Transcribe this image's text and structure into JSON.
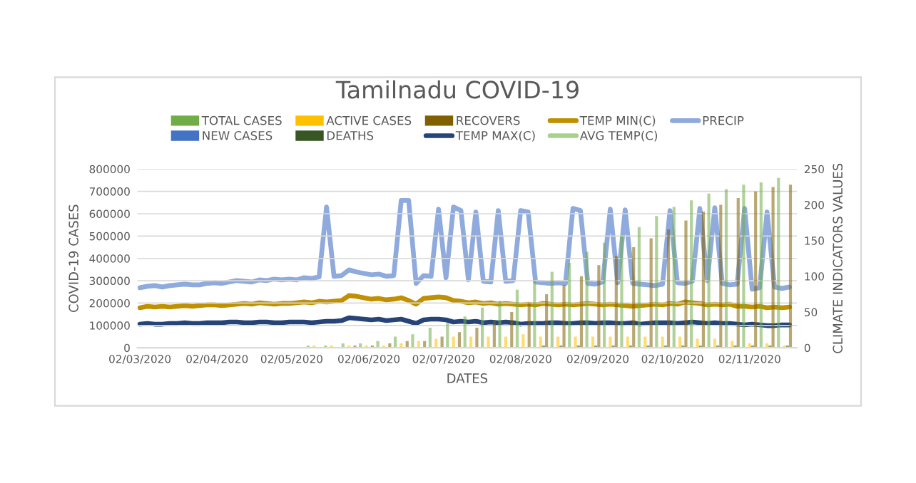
{
  "chart_data": {
    "type": "bar",
    "title": "Tamilnadu COVID-19",
    "xlabel": "DATES",
    "ylabel": "COVID-19 CASES",
    "y2label": "CLIMATE INDICATORS VALUES",
    "xlim": [
      "2020-03-01",
      "2020-11-21"
    ],
    "xticks": [
      {
        "value": "2020-03-02",
        "label": "02/03/2020"
      },
      {
        "value": "2020-04-02",
        "label": "02/04/2020"
      },
      {
        "value": "2020-05-02",
        "label": "02/05/2020"
      },
      {
        "value": "2020-06-02",
        "label": "02/06/2020"
      },
      {
        "value": "2020-07-02",
        "label": "02/07/2020"
      },
      {
        "value": "2020-08-02",
        "label": "02/08/2020"
      },
      {
        "value": "2020-09-02",
        "label": "02/09/2020"
      },
      {
        "value": "2020-10-02",
        "label": "02/10/2020"
      },
      {
        "value": "2020-11-02",
        "label": "02/11/2020"
      }
    ],
    "ylim": [
      0,
      800000
    ],
    "yticks": [
      0,
      100000,
      200000,
      300000,
      400000,
      500000,
      600000,
      700000,
      800000
    ],
    "y2lim": [
      0,
      250
    ],
    "y2ticks": [
      0,
      50,
      100,
      150,
      200,
      250
    ],
    "grid": "y",
    "legend": "top",
    "x": [
      "2020-03-02",
      "2020-03-09",
      "2020-03-16",
      "2020-03-23",
      "2020-03-30",
      "2020-04-06",
      "2020-04-13",
      "2020-04-20",
      "2020-04-27",
      "2020-05-04",
      "2020-05-11",
      "2020-05-18",
      "2020-05-25",
      "2020-06-01",
      "2020-06-08",
      "2020-06-15",
      "2020-06-22",
      "2020-06-29",
      "2020-07-06",
      "2020-07-13",
      "2020-07-20",
      "2020-07-27",
      "2020-08-03",
      "2020-08-10",
      "2020-08-17",
      "2020-08-24",
      "2020-08-31",
      "2020-09-07",
      "2020-09-14",
      "2020-09-21",
      "2020-09-28",
      "2020-10-05",
      "2020-10-12",
      "2020-10-19",
      "2020-10-26",
      "2020-11-02",
      "2020-11-09",
      "2020-11-16"
    ],
    "series": [
      {
        "name": "TOTAL CASES",
        "color": "#70ad47",
        "values": [
          0,
          0,
          0,
          0,
          0,
          0,
          0,
          0,
          0,
          0,
          10000,
          10000,
          20000,
          20000,
          30000,
          50000,
          60000,
          90000,
          110000,
          140000,
          180000,
          210000,
          260000,
          300000,
          340000,
          380000,
          430000,
          470000,
          500000,
          540000,
          590000,
          630000,
          660000,
          690000,
          710000,
          730000,
          740000,
          760000
        ]
      },
      {
        "name": "NEW CASES",
        "color": "#4472c4",
        "values": [
          0,
          0,
          0,
          0,
          0,
          0,
          0,
          0,
          0,
          0,
          0,
          0,
          0,
          0,
          0,
          0,
          0,
          0,
          0,
          0,
          0,
          0,
          0,
          0,
          0,
          0,
          0,
          0,
          0,
          0,
          0,
          0,
          0,
          0,
          0,
          0,
          0,
          0
        ]
      },
      {
        "name": "ACTIVE CASES",
        "color": "#ffc000",
        "values": [
          0,
          0,
          0,
          0,
          0,
          0,
          0,
          0,
          0,
          0,
          10000,
          10000,
          10000,
          10000,
          10000,
          20000,
          30000,
          40000,
          50000,
          50000,
          50000,
          50000,
          60000,
          50000,
          50000,
          50000,
          50000,
          50000,
          50000,
          50000,
          50000,
          50000,
          40000,
          40000,
          30000,
          20000,
          20000,
          10000
        ]
      },
      {
        "name": "DEATHS",
        "color": "#375623",
        "values": [
          0,
          0,
          0,
          0,
          0,
          0,
          0,
          0,
          0,
          0,
          0,
          0,
          0,
          0,
          0,
          0,
          0,
          0,
          0,
          0,
          0,
          0,
          0,
          10000,
          10000,
          10000,
          10000,
          10000,
          10000,
          10000,
          10000,
          10000,
          10000,
          10000,
          10000,
          10000,
          10000,
          10000
        ]
      },
      {
        "name": "RECOVERS",
        "color": "#806000",
        "values": [
          0,
          0,
          0,
          0,
          0,
          0,
          0,
          0,
          0,
          0,
          0,
          0,
          10000,
          10000,
          20000,
          30000,
          30000,
          50000,
          70000,
          90000,
          120000,
          160000,
          200000,
          240000,
          280000,
          320000,
          370000,
          410000,
          450000,
          490000,
          530000,
          570000,
          610000,
          640000,
          670000,
          700000,
          720000,
          730000
        ]
      },
      {
        "name": "TEMP MAX(C)",
        "type": "line",
        "axis": "y2",
        "color": "#264478",
        "x": [
          "2020-03-02",
          "2020-03-05",
          "2020-03-08",
          "2020-03-11",
          "2020-03-14",
          "2020-03-17",
          "2020-03-20",
          "2020-03-23",
          "2020-03-26",
          "2020-03-29",
          "2020-04-01",
          "2020-04-04",
          "2020-04-07",
          "2020-04-10",
          "2020-04-13",
          "2020-04-16",
          "2020-04-19",
          "2020-04-22",
          "2020-04-25",
          "2020-04-28",
          "2020-05-01",
          "2020-05-04",
          "2020-05-07",
          "2020-05-10",
          "2020-05-13",
          "2020-05-16",
          "2020-05-19",
          "2020-05-22",
          "2020-05-25",
          "2020-05-28",
          "2020-05-31",
          "2020-06-03",
          "2020-06-06",
          "2020-06-09",
          "2020-06-12",
          "2020-06-15",
          "2020-06-18",
          "2020-06-21",
          "2020-06-24",
          "2020-06-27",
          "2020-06-30",
          "2020-07-03",
          "2020-07-06",
          "2020-07-09",
          "2020-07-12",
          "2020-07-15",
          "2020-07-18",
          "2020-07-21",
          "2020-07-24",
          "2020-07-27",
          "2020-07-30",
          "2020-08-02",
          "2020-08-05",
          "2020-08-08",
          "2020-08-11",
          "2020-08-14",
          "2020-08-17",
          "2020-08-20",
          "2020-08-23",
          "2020-08-26",
          "2020-08-29",
          "2020-09-01",
          "2020-09-04",
          "2020-09-07",
          "2020-09-10",
          "2020-09-13",
          "2020-09-16",
          "2020-09-19",
          "2020-09-22",
          "2020-09-25",
          "2020-09-28",
          "2020-10-01",
          "2020-10-04",
          "2020-10-07",
          "2020-10-10",
          "2020-10-13",
          "2020-10-16",
          "2020-10-19",
          "2020-10-22",
          "2020-10-25",
          "2020-10-28",
          "2020-10-31",
          "2020-11-03",
          "2020-11-06",
          "2020-11-09",
          "2020-11-12",
          "2020-11-15",
          "2020-11-18"
        ],
        "values": [
          33,
          34,
          33,
          33,
          34,
          34,
          35,
          34,
          34,
          35,
          35,
          35,
          36,
          36,
          35,
          35,
          36,
          36,
          35,
          35,
          36,
          36,
          36,
          35,
          36,
          37,
          37,
          38,
          42,
          41,
          40,
          39,
          40,
          38,
          39,
          40,
          37,
          34,
          39,
          40,
          40,
          39,
          36,
          37,
          36,
          37,
          35,
          36,
          35,
          36,
          35,
          33,
          34,
          34,
          34,
          35,
          35,
          34,
          34,
          35,
          35,
          34,
          35,
          35,
          34,
          34,
          35,
          33,
          34,
          35,
          35,
          35,
          34,
          35,
          36,
          35,
          34,
          35,
          34,
          34,
          33,
          32,
          33,
          32,
          31,
          31,
          32,
          32
        ]
      },
      {
        "name": "TEMP MIN(C)",
        "type": "line",
        "axis": "y2",
        "color": "#bf9000",
        "x": [
          "2020-03-02",
          "2020-03-05",
          "2020-03-08",
          "2020-03-11",
          "2020-03-14",
          "2020-03-17",
          "2020-03-20",
          "2020-03-23",
          "2020-03-26",
          "2020-03-29",
          "2020-04-01",
          "2020-04-04",
          "2020-04-07",
          "2020-04-10",
          "2020-04-13",
          "2020-04-16",
          "2020-04-19",
          "2020-04-22",
          "2020-04-25",
          "2020-04-28",
          "2020-05-01",
          "2020-05-04",
          "2020-05-07",
          "2020-05-10",
          "2020-05-13",
          "2020-05-16",
          "2020-05-19",
          "2020-05-22",
          "2020-05-25",
          "2020-05-28",
          "2020-05-31",
          "2020-06-03",
          "2020-06-06",
          "2020-06-09",
          "2020-06-12",
          "2020-06-15",
          "2020-06-18",
          "2020-06-21",
          "2020-06-24",
          "2020-06-27",
          "2020-06-30",
          "2020-07-03",
          "2020-07-06",
          "2020-07-09",
          "2020-07-12",
          "2020-07-15",
          "2020-07-18",
          "2020-07-21",
          "2020-07-24",
          "2020-07-27",
          "2020-07-30",
          "2020-08-02",
          "2020-08-05",
          "2020-08-08",
          "2020-08-11",
          "2020-08-14",
          "2020-08-17",
          "2020-08-20",
          "2020-08-23",
          "2020-08-26",
          "2020-08-29",
          "2020-09-01",
          "2020-09-04",
          "2020-09-07",
          "2020-09-10",
          "2020-09-13",
          "2020-09-16",
          "2020-09-19",
          "2020-09-22",
          "2020-09-25",
          "2020-09-28",
          "2020-10-01",
          "2020-10-04",
          "2020-10-07",
          "2020-10-10",
          "2020-10-13",
          "2020-10-16",
          "2020-10-19",
          "2020-10-22",
          "2020-10-25",
          "2020-10-28",
          "2020-10-31",
          "2020-11-03",
          "2020-11-06",
          "2020-11-09",
          "2020-11-12",
          "2020-11-15",
          "2020-11-18"
        ],
        "values": [
          56,
          58,
          57,
          58,
          57,
          58,
          59,
          58,
          59,
          60,
          60,
          59,
          60,
          61,
          62,
          61,
          63,
          62,
          61,
          62,
          62,
          63,
          64,
          63,
          65,
          64,
          65,
          66,
          73,
          72,
          70,
          68,
          69,
          67,
          68,
          70,
          66,
          61,
          69,
          70,
          71,
          70,
          66,
          65,
          63,
          64,
          62,
          63,
          61,
          62,
          61,
          60,
          61,
          60,
          62,
          61,
          60,
          61,
          60,
          61,
          62,
          61,
          60,
          61,
          60,
          59,
          58,
          59,
          60,
          61,
          60,
          62,
          61,
          64,
          63,
          62,
          60,
          61,
          60,
          61,
          58,
          58,
          57,
          58,
          56,
          57,
          56,
          57
        ]
      },
      {
        "name": "AVG TEMP(C)",
        "type": "line",
        "axis": "y2",
        "color": "#a9d18e",
        "values": [
          null,
          null,
          null,
          null,
          null,
          null,
          null,
          null,
          null,
          null,
          null,
          null,
          null,
          null,
          null,
          null,
          null,
          null,
          null,
          null,
          null,
          null,
          null,
          null,
          null,
          null,
          null,
          null,
          null,
          null,
          null,
          null,
          null,
          null,
          null,
          null,
          null,
          null
        ]
      },
      {
        "name": "PRECIP",
        "type": "line",
        "axis": "y2",
        "color": "#8faadc",
        "x": [
          "2020-03-02",
          "2020-03-05",
          "2020-03-08",
          "2020-03-11",
          "2020-03-14",
          "2020-03-17",
          "2020-03-20",
          "2020-03-23",
          "2020-03-26",
          "2020-03-29",
          "2020-04-01",
          "2020-04-04",
          "2020-04-07",
          "2020-04-10",
          "2020-04-13",
          "2020-04-16",
          "2020-04-19",
          "2020-04-22",
          "2020-04-25",
          "2020-04-28",
          "2020-05-01",
          "2020-05-04",
          "2020-05-07",
          "2020-05-10",
          "2020-05-13",
          "2020-05-16",
          "2020-05-19",
          "2020-05-22",
          "2020-05-25",
          "2020-05-28",
          "2020-05-31",
          "2020-06-03",
          "2020-06-06",
          "2020-06-09",
          "2020-06-12",
          "2020-06-15",
          "2020-06-18",
          "2020-06-21",
          "2020-06-24",
          "2020-06-27",
          "2020-06-30",
          "2020-07-03",
          "2020-07-06",
          "2020-07-09",
          "2020-07-12",
          "2020-07-15",
          "2020-07-18",
          "2020-07-21",
          "2020-07-24",
          "2020-07-27",
          "2020-07-30",
          "2020-08-02",
          "2020-08-05",
          "2020-08-08",
          "2020-08-11",
          "2020-08-14",
          "2020-08-17",
          "2020-08-20",
          "2020-08-23",
          "2020-08-26",
          "2020-08-29",
          "2020-09-01",
          "2020-09-04",
          "2020-09-07",
          "2020-09-10",
          "2020-09-13",
          "2020-09-16",
          "2020-09-19",
          "2020-09-22",
          "2020-09-25",
          "2020-09-28",
          "2020-10-01",
          "2020-10-04",
          "2020-10-07",
          "2020-10-10",
          "2020-10-13",
          "2020-10-16",
          "2020-10-19",
          "2020-10-22",
          "2020-10-25",
          "2020-10-28",
          "2020-10-31",
          "2020-11-03",
          "2020-11-06",
          "2020-11-09",
          "2020-11-12",
          "2020-11-15",
          "2020-11-18"
        ],
        "values": [
          84,
          86,
          87,
          85,
          87,
          88,
          89,
          88,
          88,
          90,
          91,
          90,
          92,
          94,
          93,
          92,
          95,
          94,
          96,
          95,
          96,
          95,
          98,
          97,
          99,
          197,
          100,
          101,
          109,
          106,
          104,
          102,
          103,
          100,
          101,
          206,
          206,
          90,
          101,
          100,
          194,
          98,
          197,
          192,
          95,
          190,
          93,
          92,
          192,
          93,
          94,
          192,
          190,
          92,
          91,
          90,
          91,
          90,
          195,
          192,
          90,
          89,
          92,
          194,
          91,
          193,
          90,
          89,
          88,
          87,
          89,
          192,
          91,
          90,
          93,
          195,
          94,
          196,
          90,
          88,
          89,
          195,
          82,
          84,
          190,
          85,
          83,
          85
        ]
      }
    ]
  }
}
